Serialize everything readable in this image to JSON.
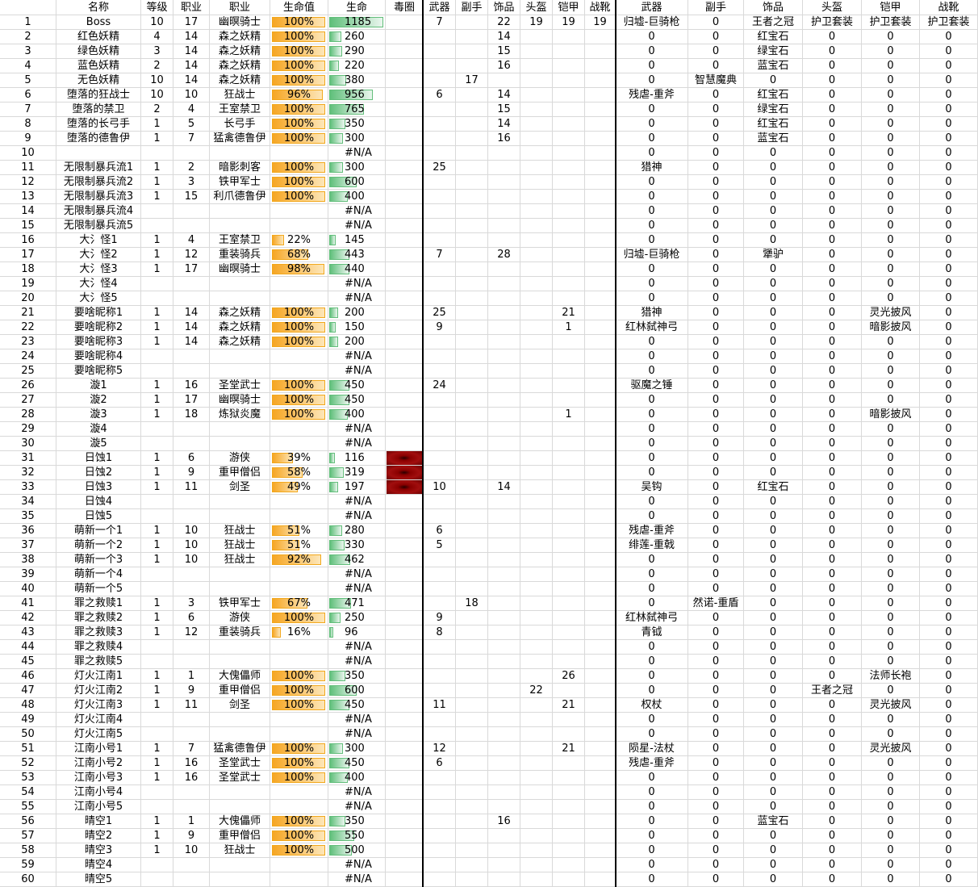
{
  "header": [
    null,
    "名称",
    "等级",
    "职业",
    "职业",
    "生命值",
    "生命",
    "毒圈",
    "武器",
    "副手",
    "饰品",
    "头盔",
    "铠甲",
    "战靴",
    "武器",
    "副手",
    "饰品",
    "头盔",
    "铠甲",
    "战靴"
  ],
  "rows": [
    [
      1,
      "Boss",
      10,
      17,
      "幽暝骑士",
      {
        "value": 100,
        "label": "100%"
      },
      1185,
      null,
      7,
      null,
      22,
      19,
      19,
      19,
      "归墟-巨骑枪",
      0,
      "王者之冠",
      "护卫套装",
      "护卫套装",
      "护卫套装"
    ],
    [
      2,
      "红色妖精",
      4,
      14,
      "森之妖精",
      {
        "value": 100,
        "label": "100%"
      },
      260,
      null,
      null,
      null,
      14,
      null,
      null,
      null,
      0,
      0,
      "红宝石",
      0,
      0,
      0
    ],
    [
      3,
      "绿色妖精",
      3,
      14,
      "森之妖精",
      {
        "value": 100,
        "label": "100%"
      },
      290,
      null,
      null,
      null,
      15,
      null,
      null,
      null,
      0,
      0,
      "绿宝石",
      0,
      0,
      0
    ],
    [
      4,
      "蓝色妖精",
      2,
      14,
      "森之妖精",
      {
        "value": 100,
        "label": "100%"
      },
      220,
      null,
      null,
      null,
      16,
      null,
      null,
      null,
      0,
      0,
      "蓝宝石",
      0,
      0,
      0
    ],
    [
      5,
      "无色妖精",
      10,
      14,
      "森之妖精",
      {
        "value": 100,
        "label": "100%"
      },
      380,
      null,
      null,
      17,
      null,
      null,
      null,
      null,
      0,
      "智慧魔典",
      0,
      0,
      0,
      0
    ],
    [
      6,
      "堕落的狂战士",
      10,
      10,
      "狂战士",
      {
        "value": 96,
        "label": "96%"
      },
      956,
      null,
      6,
      null,
      14,
      null,
      null,
      null,
      "残虐-重斧",
      0,
      "红宝石",
      0,
      0,
      0
    ],
    [
      7,
      "堕落的禁卫",
      2,
      4,
      "王室禁卫",
      {
        "value": 100,
        "label": "100%"
      },
      765,
      null,
      null,
      null,
      15,
      null,
      null,
      null,
      0,
      0,
      "绿宝石",
      0,
      0,
      0
    ],
    [
      8,
      "堕落的长弓手",
      1,
      5,
      "长弓手",
      {
        "value": 100,
        "label": "100%"
      },
      350,
      null,
      null,
      null,
      14,
      null,
      null,
      null,
      0,
      0,
      "红宝石",
      0,
      0,
      0
    ],
    [
      9,
      "堕落的德鲁伊",
      1,
      7,
      "猛禽德鲁伊",
      {
        "value": 100,
        "label": "100%"
      },
      300,
      null,
      null,
      null,
      16,
      null,
      null,
      null,
      0,
      0,
      "蓝宝石",
      0,
      0,
      0
    ],
    [
      10,
      null,
      null,
      null,
      null,
      null,
      "#N/A",
      null,
      null,
      null,
      null,
      null,
      null,
      null,
      0,
      0,
      0,
      0,
      0,
      0
    ],
    [
      11,
      "无限制暴兵流1",
      1,
      2,
      "暗影刺客",
      {
        "value": 100,
        "label": "100%"
      },
      300,
      null,
      25,
      null,
      null,
      null,
      null,
      null,
      "猎神",
      0,
      0,
      0,
      0,
      0
    ],
    [
      12,
      "无限制暴兵流2",
      1,
      3,
      "铁甲军士",
      {
        "value": 100,
        "label": "100%"
      },
      600,
      null,
      null,
      null,
      null,
      null,
      null,
      null,
      0,
      0,
      0,
      0,
      0,
      0
    ],
    [
      13,
      "无限制暴兵流3",
      1,
      15,
      "利爪德鲁伊",
      {
        "value": 100,
        "label": "100%"
      },
      400,
      null,
      null,
      null,
      null,
      null,
      null,
      null,
      0,
      0,
      0,
      0,
      0,
      0
    ],
    [
      14,
      "无限制暴兵流4",
      null,
      null,
      null,
      null,
      "#N/A",
      null,
      null,
      null,
      null,
      null,
      null,
      null,
      0,
      0,
      0,
      0,
      0,
      0
    ],
    [
      15,
      "无限制暴兵流5",
      null,
      null,
      null,
      null,
      "#N/A",
      null,
      null,
      null,
      null,
      null,
      null,
      null,
      0,
      0,
      0,
      0,
      0,
      0
    ],
    [
      16,
      "大氵怪1",
      1,
      4,
      "王室禁卫",
      {
        "value": 22,
        "label": "22%"
      },
      145,
      null,
      null,
      null,
      null,
      null,
      null,
      null,
      0,
      0,
      0,
      0,
      0,
      0
    ],
    [
      17,
      "大氵怪2",
      1,
      12,
      "重装骑兵",
      {
        "value": 68,
        "label": "68%"
      },
      443,
      null,
      7,
      null,
      28,
      null,
      null,
      null,
      "归墟-巨骑枪",
      0,
      "犟驴",
      0,
      0,
      0
    ],
    [
      18,
      "大氵怪3",
      1,
      17,
      "幽暝骑士",
      {
        "value": 98,
        "label": "98%"
      },
      440,
      null,
      null,
      null,
      null,
      null,
      null,
      null,
      0,
      0,
      0,
      0,
      0,
      0
    ],
    [
      19,
      "大氵怪4",
      null,
      null,
      null,
      null,
      "#N/A",
      null,
      null,
      null,
      null,
      null,
      null,
      null,
      0,
      0,
      0,
      0,
      0,
      0
    ],
    [
      20,
      "大氵怪5",
      null,
      null,
      null,
      null,
      "#N/A",
      null,
      null,
      null,
      null,
      null,
      null,
      null,
      0,
      0,
      0,
      0,
      0,
      0
    ],
    [
      21,
      "要啥昵称1",
      1,
      14,
      "森之妖精",
      {
        "value": 100,
        "label": "100%"
      },
      200,
      null,
      25,
      null,
      null,
      null,
      21,
      null,
      "猎神",
      0,
      0,
      0,
      "灵光披风",
      0
    ],
    [
      22,
      "要啥昵称2",
      1,
      14,
      "森之妖精",
      {
        "value": 100,
        "label": "100%"
      },
      150,
      null,
      9,
      null,
      null,
      null,
      1,
      null,
      "红林弑神弓",
      0,
      0,
      0,
      "暗影披风",
      0
    ],
    [
      23,
      "要啥昵称3",
      1,
      14,
      "森之妖精",
      {
        "value": 100,
        "label": "100%"
      },
      200,
      null,
      null,
      null,
      null,
      null,
      null,
      null,
      0,
      0,
      0,
      0,
      0,
      0
    ],
    [
      24,
      "要啥昵称4",
      null,
      null,
      null,
      null,
      "#N/A",
      null,
      null,
      null,
      null,
      null,
      null,
      null,
      0,
      0,
      0,
      0,
      0,
      0
    ],
    [
      25,
      "要啥昵称5",
      null,
      null,
      null,
      null,
      "#N/A",
      null,
      null,
      null,
      null,
      null,
      null,
      null,
      0,
      0,
      0,
      0,
      0,
      0
    ],
    [
      26,
      "漩1",
      1,
      16,
      "圣堂武士",
      {
        "value": 100,
        "label": "100%"
      },
      450,
      null,
      24,
      null,
      null,
      null,
      null,
      null,
      "驱魔之锤",
      0,
      0,
      0,
      0,
      0
    ],
    [
      27,
      "漩2",
      1,
      17,
      "幽暝骑士",
      {
        "value": 100,
        "label": "100%"
      },
      450,
      null,
      null,
      null,
      null,
      null,
      null,
      null,
      0,
      0,
      0,
      0,
      0,
      0
    ],
    [
      28,
      "漩3",
      1,
      18,
      "炼狱炎魔",
      {
        "value": 100,
        "label": "100%"
      },
      400,
      null,
      null,
      null,
      null,
      null,
      1,
      null,
      0,
      0,
      0,
      0,
      "暗影披风",
      0
    ],
    [
      29,
      "漩4",
      null,
      null,
      null,
      null,
      "#N/A",
      null,
      null,
      null,
      null,
      null,
      null,
      null,
      0,
      0,
      0,
      0,
      0,
      0
    ],
    [
      30,
      "漩5",
      null,
      null,
      null,
      null,
      "#N/A",
      null,
      null,
      null,
      null,
      null,
      null,
      null,
      0,
      0,
      0,
      0,
      0,
      0
    ],
    [
      31,
      "日蚀1",
      1,
      6,
      "游侠",
      {
        "value": 39,
        "label": "39%"
      },
      116,
      true,
      null,
      null,
      null,
      null,
      null,
      null,
      0,
      0,
      0,
      0,
      0,
      0
    ],
    [
      32,
      "日蚀2",
      1,
      9,
      "重甲僧侣",
      {
        "value": 58,
        "label": "58%"
      },
      319,
      true,
      null,
      null,
      null,
      null,
      null,
      null,
      0,
      0,
      0,
      0,
      0,
      0
    ],
    [
      33,
      "日蚀3",
      1,
      11,
      "剑圣",
      {
        "value": 49,
        "label": "49%"
      },
      197,
      true,
      10,
      null,
      14,
      null,
      null,
      null,
      "吴钩",
      0,
      "红宝石",
      0,
      0,
      0
    ],
    [
      34,
      "日蚀4",
      null,
      null,
      null,
      null,
      "#N/A",
      null,
      null,
      null,
      null,
      null,
      null,
      null,
      0,
      0,
      0,
      0,
      0,
      0
    ],
    [
      35,
      "日蚀5",
      null,
      null,
      null,
      null,
      "#N/A",
      null,
      null,
      null,
      null,
      null,
      null,
      null,
      0,
      0,
      0,
      0,
      0,
      0
    ],
    [
      36,
      "萌新一个1",
      1,
      10,
      "狂战士",
      {
        "value": 51,
        "label": "51%"
      },
      280,
      null,
      6,
      null,
      null,
      null,
      null,
      null,
      "残虐-重斧",
      0,
      0,
      0,
      0,
      0
    ],
    [
      37,
      "萌新一个2",
      1,
      10,
      "狂战士",
      {
        "value": 51,
        "label": "51%"
      },
      330,
      null,
      5,
      null,
      null,
      null,
      null,
      null,
      "绯莲-重戟",
      0,
      0,
      0,
      0,
      0
    ],
    [
      38,
      "萌新一个3",
      1,
      10,
      "狂战士",
      {
        "value": 92,
        "label": "92%"
      },
      462,
      null,
      null,
      null,
      null,
      null,
      null,
      null,
      0,
      0,
      0,
      0,
      0,
      0
    ],
    [
      39,
      "萌新一个4",
      null,
      null,
      null,
      null,
      "#N/A",
      null,
      null,
      null,
      null,
      null,
      null,
      null,
      0,
      0,
      0,
      0,
      0,
      0
    ],
    [
      40,
      "萌新一个5",
      null,
      null,
      null,
      null,
      "#N/A",
      null,
      null,
      null,
      null,
      null,
      null,
      null,
      0,
      0,
      0,
      0,
      0,
      0
    ],
    [
      41,
      "罪之救赎1",
      1,
      3,
      "铁甲军士",
      {
        "value": 67,
        "label": "67%"
      },
      471,
      null,
      null,
      18,
      null,
      null,
      null,
      null,
      0,
      "然诺-重盾",
      0,
      0,
      0,
      0
    ],
    [
      42,
      "罪之救赎2",
      1,
      6,
      "游侠",
      {
        "value": 100,
        "label": "100%"
      },
      250,
      null,
      9,
      null,
      null,
      null,
      null,
      null,
      "红林弑神弓",
      0,
      0,
      0,
      0,
      0
    ],
    [
      43,
      "罪之救赎3",
      1,
      12,
      "重装骑兵",
      {
        "value": 16,
        "label": "16%"
      },
      96,
      null,
      8,
      null,
      null,
      null,
      null,
      null,
      "青钺",
      0,
      0,
      0,
      0,
      0
    ],
    [
      44,
      "罪之救赎4",
      null,
      null,
      null,
      null,
      "#N/A",
      null,
      null,
      null,
      null,
      null,
      null,
      null,
      0,
      0,
      0,
      0,
      0,
      0
    ],
    [
      45,
      "罪之救赎5",
      null,
      null,
      null,
      null,
      "#N/A",
      null,
      null,
      null,
      null,
      null,
      null,
      null,
      0,
      0,
      0,
      0,
      0,
      0
    ],
    [
      46,
      "灯火江南1",
      1,
      1,
      "大傀儡师",
      {
        "value": 100,
        "label": "100%"
      },
      350,
      null,
      null,
      null,
      null,
      null,
      26,
      null,
      0,
      0,
      0,
      0,
      "法师长袍",
      0
    ],
    [
      47,
      "灯火江南2",
      1,
      9,
      "重甲僧侣",
      {
        "value": 100,
        "label": "100%"
      },
      600,
      null,
      null,
      null,
      null,
      22,
      null,
      null,
      0,
      0,
      0,
      "王者之冠",
      0,
      0
    ],
    [
      48,
      "灯火江南3",
      1,
      11,
      "剑圣",
      {
        "value": 100,
        "label": "100%"
      },
      450,
      null,
      11,
      null,
      null,
      null,
      21,
      null,
      "权杖",
      0,
      0,
      0,
      "灵光披风",
      0
    ],
    [
      49,
      "灯火江南4",
      null,
      null,
      null,
      null,
      "#N/A",
      null,
      null,
      null,
      null,
      null,
      null,
      null,
      0,
      0,
      0,
      0,
      0,
      0
    ],
    [
      50,
      "灯火江南5",
      null,
      null,
      null,
      null,
      "#N/A",
      null,
      null,
      null,
      null,
      null,
      null,
      null,
      0,
      0,
      0,
      0,
      0,
      0
    ],
    [
      51,
      "江南小号1",
      1,
      7,
      "猛禽德鲁伊",
      {
        "value": 100,
        "label": "100%"
      },
      300,
      null,
      12,
      null,
      null,
      null,
      21,
      null,
      "陨星-法杖",
      0,
      0,
      0,
      "灵光披风",
      0
    ],
    [
      52,
      "江南小号2",
      1,
      16,
      "圣堂武士",
      {
        "value": 100,
        "label": "100%"
      },
      450,
      null,
      6,
      null,
      null,
      null,
      null,
      null,
      "残虐-重斧",
      0,
      0,
      0,
      0,
      0
    ],
    [
      53,
      "江南小号3",
      1,
      16,
      "圣堂武士",
      {
        "value": 100,
        "label": "100%"
      },
      400,
      null,
      null,
      null,
      null,
      null,
      null,
      null,
      0,
      0,
      0,
      0,
      0,
      0
    ],
    [
      54,
      "江南小号4",
      null,
      null,
      null,
      null,
      "#N/A",
      null,
      null,
      null,
      null,
      null,
      null,
      null,
      0,
      0,
      0,
      0,
      0,
      0
    ],
    [
      55,
      "江南小号5",
      null,
      null,
      null,
      null,
      "#N/A",
      null,
      null,
      null,
      null,
      null,
      null,
      null,
      0,
      0,
      0,
      0,
      0,
      0
    ],
    [
      56,
      "晴空1",
      1,
      1,
      "大傀儡师",
      {
        "value": 100,
        "label": "100%"
      },
      350,
      null,
      null,
      null,
      16,
      null,
      null,
      null,
      0,
      0,
      "蓝宝石",
      0,
      0,
      0
    ],
    [
      57,
      "晴空2",
      1,
      9,
      "重甲僧侣",
      {
        "value": 100,
        "label": "100%"
      },
      550,
      null,
      null,
      null,
      null,
      null,
      null,
      null,
      0,
      0,
      0,
      0,
      0,
      0
    ],
    [
      58,
      "晴空3",
      1,
      10,
      "狂战士",
      {
        "value": 100,
        "label": "100%"
      },
      500,
      null,
      null,
      null,
      null,
      null,
      null,
      null,
      0,
      0,
      0,
      0,
      0,
      0
    ],
    [
      59,
      "晴空4",
      null,
      null,
      null,
      null,
      "#N/A",
      null,
      null,
      null,
      null,
      null,
      null,
      null,
      0,
      0,
      0,
      0,
      0,
      0
    ],
    [
      60,
      "晴空5",
      null,
      null,
      null,
      null,
      "#N/A",
      null,
      null,
      null,
      null,
      null,
      null,
      null,
      0,
      0,
      0,
      0,
      0,
      0
    ]
  ]
}
